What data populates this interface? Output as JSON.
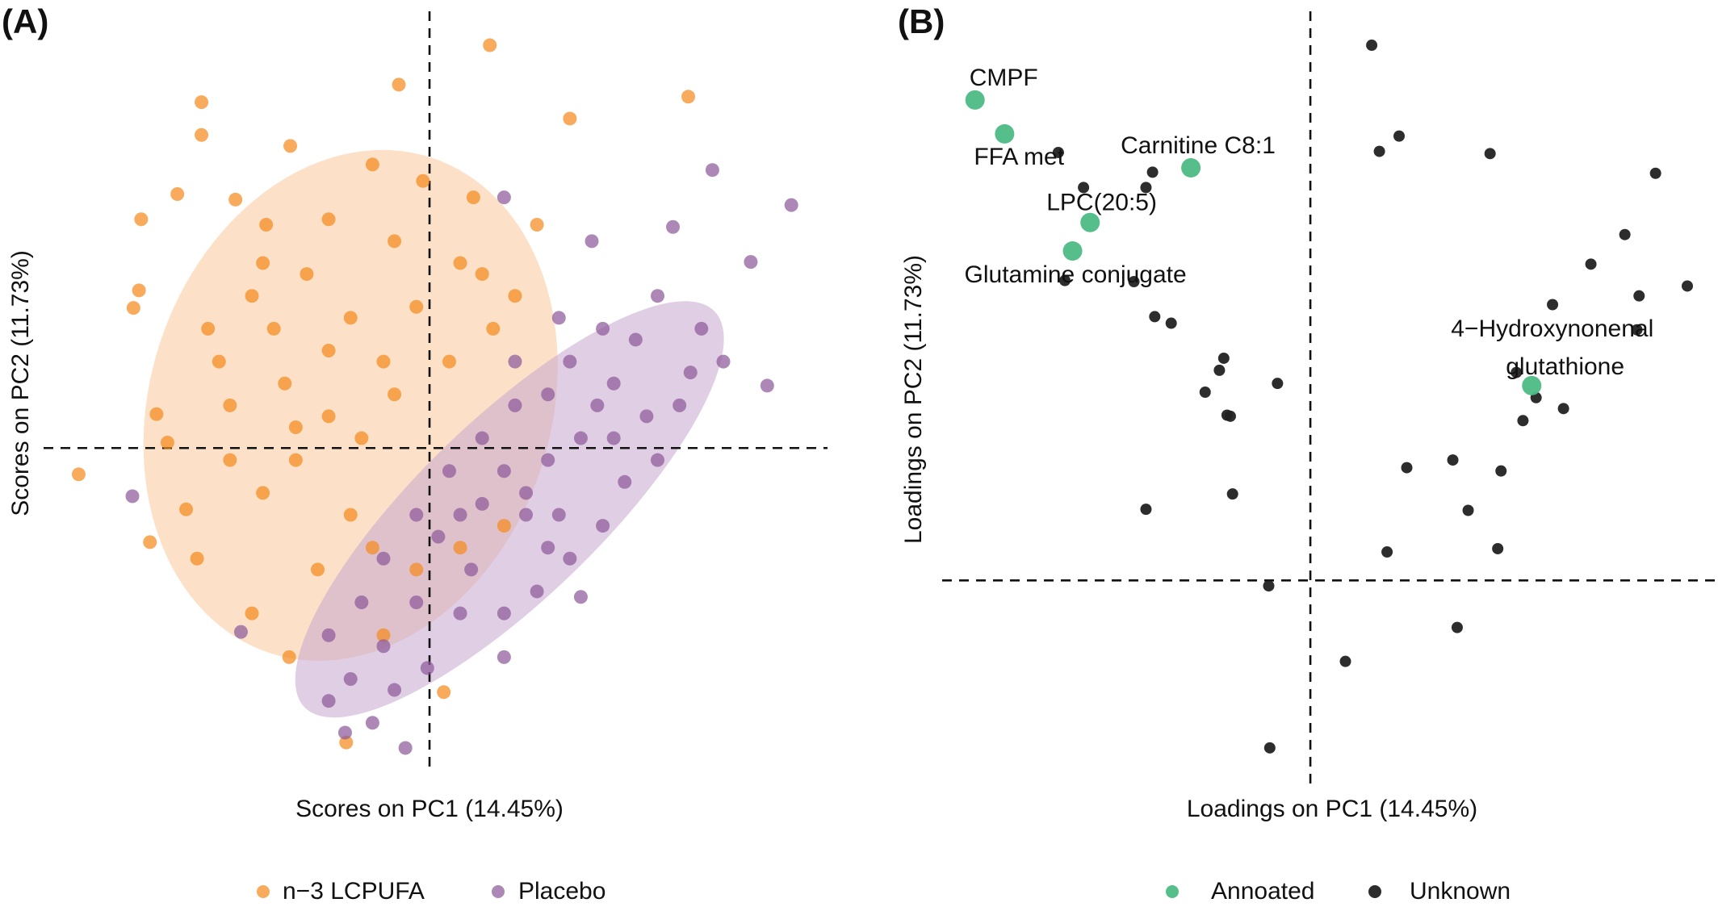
{
  "chart_data": [
    {
      "type": "scatter",
      "panel_label": "(A)",
      "x_label": "Scores on PC1 (14.45%)",
      "y_label": "Scores on PC2 (11.73%)",
      "xlim": [
        -35.2,
        36.3
      ],
      "ylim": [
        -29.1,
        39.9
      ],
      "legend": "bottom",
      "series": [
        {
          "name": "n−3 LCPUFA",
          "color": "#f58b1f",
          "ellipse_color": "#f9c99a",
          "ellipse": {
            "cx": -7.2,
            "cy": 3.9,
            "rx": 18.3,
            "ry": 23.8,
            "angle": 18
          },
          "x": [
            5.5,
            -2.8,
            -20.8,
            -20.8,
            23.6,
            12.8,
            -12.7,
            -23,
            -26.3,
            -17.7,
            -14.9,
            -5.2,
            -0.6,
            4,
            9.8,
            -26.5,
            -27,
            -20.2,
            -16.2,
            -11.2,
            -7.2,
            -9.2,
            -13.2,
            -18.2,
            -24.9,
            -23.9,
            -32,
            -22.2,
            -25.5,
            -21.2,
            -15.2,
            -12.2,
            -6.2,
            -3.2,
            1.8,
            5.8,
            4.8,
            7.8,
            -7.2,
            -10.2,
            -5.2,
            -1.2,
            2.8,
            6.8,
            -16.2,
            -12.8,
            -4.2,
            1.3,
            -7.6,
            -18.2,
            -9.2,
            -4.2,
            -1.2,
            -14.2,
            -19.2,
            -12.2,
            -15.2,
            -3.2,
            2.8,
            -9.2
          ],
          "y": [
            36.8,
            33.2,
            31.6,
            28.6,
            32.1,
            30.1,
            27.6,
            23.2,
            20.9,
            22.7,
            20.4,
            25.9,
            24.4,
            22.9,
            20.4,
            14.4,
            12.8,
            10.9,
            13.9,
            15.9,
            11.9,
            8.9,
            5.9,
            3.9,
            3.1,
            0.5,
            -2.4,
            -5.6,
            -8.6,
            -10.1,
            -4.1,
            -1.1,
            0.9,
            4.9,
            7.9,
            10.9,
            15.9,
            13.9,
            -6.1,
            -11.1,
            -9.1,
            -11.1,
            -9.1,
            -7.1,
            -15.1,
            -19.1,
            -17.1,
            -22.3,
            -26.9,
            -1.1,
            2.9,
            7.9,
            12.9,
            10.9,
            7.9,
            1.9,
            16.9,
            18.9,
            16.9,
            20.9
          ]
        },
        {
          "name": "Placebo",
          "color": "#8e5a9a",
          "ellipse_color": "#c7a8ce",
          "ellipse": {
            "cx": 7.3,
            "cy": -5.6,
            "rx": 26,
            "ry": 8.2,
            "angle": -44
          },
          "x": [
            25.8,
            33,
            29.3,
            30.8,
            22.2,
            14.8,
            20.8,
            24.8,
            26.8,
            18.8,
            12.8,
            16.8,
            22.8,
            20.8,
            17.8,
            13.8,
            10.8,
            8.8,
            6.8,
            4.8,
            11.8,
            15.8,
            12.8,
            9.8,
            6.8,
            13.8,
            3.8,
            0.8,
            -1.2,
            -4.2,
            -7.2,
            -9.2,
            -5.2,
            -2.2,
            -7.7,
            -17.2,
            -27.1,
            7.8,
            4.8,
            1.8,
            -1.2,
            -4.2,
            2.8,
            6.8,
            -0.2,
            10.8,
            16.8,
            19.8,
            23.8,
            15.3,
            10.8,
            7.8,
            11.8,
            15.8,
            6.8,
            8.8,
            2.8,
            -6.2,
            -9.2,
            -3.2
          ],
          "y": [
            25.4,
            22.2,
            17,
            5.7,
            20.2,
            18.9,
            13.9,
            10.9,
            7.9,
            9.9,
            7.9,
            5.9,
            3.9,
            -1.1,
            -3.1,
            0.9,
            -1.1,
            -4.1,
            -2.1,
            -5.1,
            -6.1,
            -7.1,
            -10.1,
            -13.1,
            -15.1,
            -13.6,
            -11.1,
            -8.1,
            -14.1,
            -18.1,
            -21.1,
            -23.1,
            -25.1,
            -27.4,
            -26,
            -16.8,
            -4.4,
            3.9,
            0.9,
            -2.1,
            -6.1,
            -10.1,
            -15.1,
            -19.1,
            -20.1,
            -9.1,
            0.9,
            2.9,
            6.9,
            3.9,
            4.9,
            7.9,
            11.9,
            10.9,
            22.9,
            -6.1,
            -6.1,
            -14.1,
            -17.1,
            -22.1
          ]
        }
      ]
    },
    {
      "type": "scatter",
      "panel_label": "(B)",
      "x_label": "Loadings on PC1 (14.45%)",
      "y_label": "Loadings on PC2 (11.73%)",
      "xlim": [
        -33.6,
        37.2
      ],
      "ylim": [
        -19,
        52
      ],
      "legend": "bottom",
      "series": [
        {
          "name": "Annoated",
          "color": "#4cbb85",
          "x": [
            -30.6,
            -27.9,
            -10.9,
            -20.1,
            -21.7,
            20.2
          ],
          "y": [
            43.9,
            40.8,
            37.7,
            32.7,
            30.1,
            17.8
          ],
          "labels": [
            "CMPF",
            "FFA met",
            "Carnitine C8:1",
            "LPC(20:5)",
            "Glutamine conjugate",
            "4−Hydroxynonenal\nglutathione"
          ]
        },
        {
          "name": "Unknown",
          "color": "#222222",
          "x": [
            5.6,
            8.1,
            6.3,
            16.4,
            31.5,
            -23,
            -20.7,
            -14.4,
            -15,
            -16.1,
            -22.4,
            -14.2,
            -12.7,
            -7.9,
            -8.3,
            -9.6,
            -3,
            -7.6,
            -7.3,
            28.7,
            25.6,
            30,
            34.4,
            22.1,
            29.8,
            18.8,
            20.6,
            23.1,
            19.4,
            8.8,
            13,
            17.4,
            -7.1,
            -15,
            14.4,
            7,
            17.1,
            -3.8,
            13.4,
            3.2,
            -3.7
          ],
          "y": [
            48.9,
            40.6,
            39.2,
            39,
            37.2,
            39.1,
            35.9,
            37.3,
            35.9,
            27.3,
            27.4,
            24.1,
            23.5,
            20.3,
            19.2,
            17.2,
            18,
            15.1,
            15,
            31.6,
            28.9,
            26,
            26.9,
            25.2,
            22.9,
            19,
            16.7,
            15.7,
            14.6,
            10.3,
            11,
            10,
            7.9,
            6.5,
            6.4,
            2.6,
            2.9,
            -0.5,
            -4.3,
            -7.4,
            -15.3
          ]
        }
      ]
    }
  ]
}
